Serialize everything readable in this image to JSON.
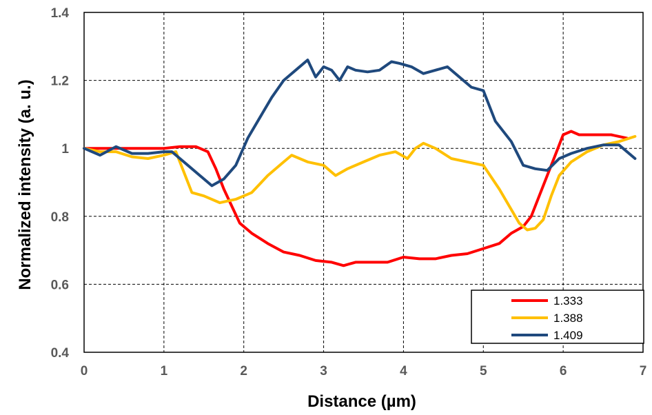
{
  "chart_data": {
    "type": "line",
    "xlabel": "Distance (µm)",
    "ylabel": "Normalized intensity (a. u.)",
    "xlim": [
      0,
      7
    ],
    "ylim": [
      0.4,
      1.4
    ],
    "xticks": [
      "0",
      "1",
      "2",
      "3",
      "4",
      "5",
      "6",
      "7"
    ],
    "yticks": [
      "0.4",
      "0.6",
      "0.8",
      "1",
      "1.2",
      "1.4"
    ],
    "grid": true,
    "legend_position": "bottom-right",
    "series": [
      {
        "name": "1.333",
        "color": "#ff0000",
        "x": [
          0,
          0.2,
          0.4,
          0.6,
          0.8,
          1.0,
          1.2,
          1.4,
          1.55,
          1.65,
          1.75,
          1.85,
          1.95,
          2.1,
          2.3,
          2.5,
          2.7,
          2.9,
          3.1,
          3.25,
          3.4,
          3.6,
          3.8,
          4.0,
          4.2,
          4.4,
          4.6,
          4.8,
          5.0,
          5.2,
          5.35,
          5.5,
          5.6,
          5.7,
          5.8,
          5.9,
          6.0,
          6.1,
          6.2,
          6.4,
          6.6,
          6.8
        ],
        "values": [
          1.0,
          1.0,
          1.0,
          1.0,
          1.0,
          1.0,
          1.005,
          1.005,
          0.99,
          0.94,
          0.88,
          0.83,
          0.78,
          0.75,
          0.72,
          0.695,
          0.685,
          0.67,
          0.665,
          0.655,
          0.665,
          0.665,
          0.665,
          0.68,
          0.675,
          0.675,
          0.685,
          0.69,
          0.705,
          0.72,
          0.75,
          0.77,
          0.8,
          0.86,
          0.92,
          0.98,
          1.04,
          1.05,
          1.04,
          1.04,
          1.04,
          1.03
        ]
      },
      {
        "name": "1.388",
        "color": "#ffc000",
        "x": [
          0,
          0.2,
          0.4,
          0.6,
          0.8,
          1.0,
          1.15,
          1.25,
          1.35,
          1.5,
          1.7,
          1.9,
          2.1,
          2.3,
          2.5,
          2.6,
          2.8,
          3.0,
          3.15,
          3.3,
          3.5,
          3.7,
          3.9,
          4.05,
          4.15,
          4.25,
          4.4,
          4.6,
          4.8,
          5.0,
          5.2,
          5.35,
          5.45,
          5.55,
          5.65,
          5.75,
          5.85,
          5.95,
          6.1,
          6.3,
          6.5,
          6.7,
          6.9
        ],
        "values": [
          1.0,
          0.99,
          0.99,
          0.975,
          0.97,
          0.98,
          0.99,
          0.93,
          0.87,
          0.86,
          0.84,
          0.85,
          0.87,
          0.92,
          0.96,
          0.98,
          0.96,
          0.95,
          0.92,
          0.94,
          0.96,
          0.98,
          0.99,
          0.97,
          1.0,
          1.015,
          1.0,
          0.97,
          0.96,
          0.95,
          0.88,
          0.82,
          0.78,
          0.76,
          0.765,
          0.79,
          0.86,
          0.92,
          0.96,
          0.99,
          1.01,
          1.02,
          1.035
        ]
      },
      {
        "name": "1.409",
        "color": "#1f497d",
        "x": [
          0,
          0.2,
          0.4,
          0.6,
          0.8,
          1.0,
          1.1,
          1.3,
          1.45,
          1.6,
          1.75,
          1.9,
          2.05,
          2.2,
          2.35,
          2.5,
          2.65,
          2.8,
          2.9,
          3.0,
          3.1,
          3.2,
          3.3,
          3.4,
          3.55,
          3.7,
          3.85,
          3.95,
          4.1,
          4.25,
          4.4,
          4.55,
          4.7,
          4.85,
          5.0,
          5.15,
          5.35,
          5.5,
          5.65,
          5.8,
          5.95,
          6.1,
          6.3,
          6.5,
          6.7,
          6.9
        ],
        "values": [
          1.0,
          0.98,
          1.005,
          0.985,
          0.985,
          0.99,
          0.99,
          0.95,
          0.92,
          0.89,
          0.91,
          0.95,
          1.03,
          1.09,
          1.15,
          1.2,
          1.23,
          1.26,
          1.21,
          1.24,
          1.23,
          1.2,
          1.24,
          1.23,
          1.225,
          1.23,
          1.255,
          1.25,
          1.24,
          1.22,
          1.23,
          1.24,
          1.21,
          1.18,
          1.17,
          1.08,
          1.02,
          0.95,
          0.94,
          0.935,
          0.97,
          0.985,
          1.0,
          1.01,
          1.01,
          0.97
        ]
      }
    ]
  }
}
